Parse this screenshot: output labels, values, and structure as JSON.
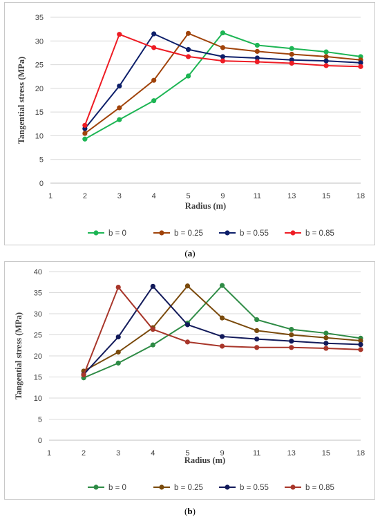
{
  "chart_data": [
    {
      "id": "a",
      "type": "line",
      "caption": "a",
      "title": "",
      "xlabel": "Radius (m)",
      "ylabel": "Tangential stress (MPa)",
      "x_ticks": [
        "1",
        "2",
        "3",
        "4",
        "5",
        "9",
        "11",
        "13",
        "15",
        "18"
      ],
      "categories": [
        "2",
        "3",
        "4",
        "5",
        "9",
        "11",
        "13",
        "15",
        "18"
      ],
      "ylim": [
        0,
        35
      ],
      "y_step": 5,
      "grid": "horizontal",
      "legend_position": "bottom",
      "series": [
        {
          "name": "b = 0",
          "color": "#1db554",
          "values": [
            9.3,
            13.4,
            17.4,
            22.6,
            31.7,
            29.1,
            28.4,
            27.7,
            26.7
          ]
        },
        {
          "name": "b = 0.25",
          "color": "#a0430a",
          "values": [
            10.5,
            15.9,
            21.7,
            31.6,
            28.6,
            27.8,
            27.2,
            26.7,
            26.0
          ]
        },
        {
          "name": "b = 0.55",
          "color": "#0d1f6a",
          "values": [
            11.5,
            20.5,
            31.5,
            28.2,
            26.7,
            26.4,
            26.0,
            25.8,
            25.4
          ]
        },
        {
          "name": "b = 0.85",
          "color": "#ee1c24",
          "values": [
            12.2,
            31.4,
            28.6,
            26.7,
            25.8,
            25.6,
            25.3,
            24.8,
            24.6
          ]
        }
      ]
    },
    {
      "id": "b",
      "type": "line",
      "caption": "b",
      "title": "",
      "xlabel": "Radius (m)",
      "ylabel": "Tangential stress (MPa)",
      "x_ticks": [
        "1",
        "2",
        "3",
        "4",
        "5",
        "9",
        "11",
        "13",
        "15",
        "18"
      ],
      "categories": [
        "2",
        "3",
        "4",
        "5",
        "9",
        "11",
        "13",
        "15",
        "18"
      ],
      "ylim": [
        0,
        40
      ],
      "y_step": 5,
      "grid": "horizontal",
      "legend_position": "bottom",
      "series": [
        {
          "name": "b = 0",
          "color": "#2e8b45",
          "values": [
            14.8,
            18.3,
            22.6,
            27.8,
            36.7,
            28.6,
            26.3,
            25.4,
            24.2
          ]
        },
        {
          "name": "b = 0.25",
          "color": "#7a4a0c",
          "values": [
            16.4,
            20.9,
            26.7,
            36.6,
            29.0,
            26.0,
            25.0,
            24.3,
            23.6
          ]
        },
        {
          "name": "b = 0.55",
          "color": "#121a5a",
          "values": [
            15.6,
            24.5,
            36.5,
            27.4,
            24.6,
            24.0,
            23.5,
            23.0,
            22.7
          ]
        },
        {
          "name": "b = 0.85",
          "color": "#a8362a",
          "values": [
            15.5,
            36.3,
            26.3,
            23.3,
            22.3,
            22.0,
            22.0,
            21.8,
            21.5
          ]
        }
      ]
    }
  ]
}
